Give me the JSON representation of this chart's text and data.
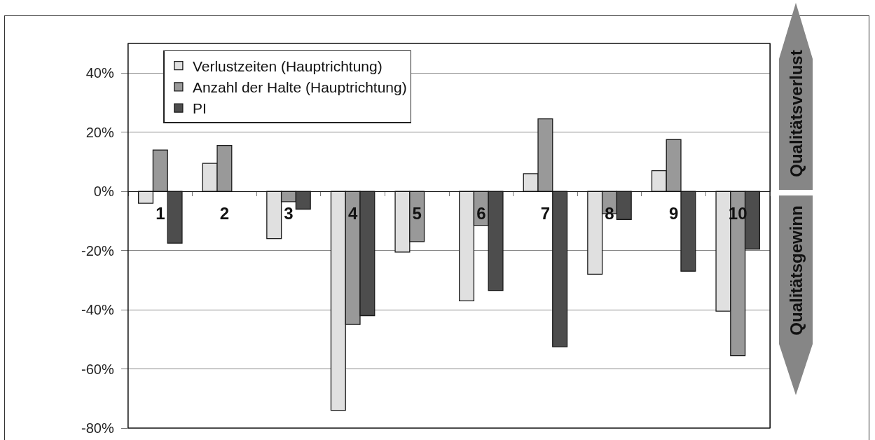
{
  "chart_data": {
    "type": "bar",
    "categories": [
      "1",
      "2",
      "3",
      "4",
      "5",
      "6",
      "7",
      "8",
      "9",
      "10"
    ],
    "series": [
      {
        "name": "Verlustzeiten (Hauptrichtung)",
        "color": "#e0e0e0",
        "values": [
          -4,
          9.5,
          -16,
          -74,
          -20.5,
          -37,
          6,
          -28,
          7,
          -40.5
        ]
      },
      {
        "name": "Anzahl der Halte (Hauptrichtung)",
        "color": "#999999",
        "values": [
          14,
          15.5,
          -3.5,
          -45,
          -17,
          -11.5,
          24.5,
          -7.5,
          17.5,
          -55.5
        ]
      },
      {
        "name": "PI",
        "color": "#4d4d4d",
        "values": [
          -17.5,
          null,
          -6,
          -42,
          null,
          -33.5,
          -52.5,
          -9.5,
          -27,
          -19.5
        ]
      }
    ],
    "ylim": [
      -80,
      50
    ],
    "yticks": [
      {
        "value": -80,
        "label": "-80%"
      },
      {
        "value": -60,
        "label": "-60%"
      },
      {
        "value": -40,
        "label": "-40%"
      },
      {
        "value": -20,
        "label": "-20%"
      },
      {
        "value": 0,
        "label": "0%"
      },
      {
        "value": 20,
        "label": "20%"
      },
      {
        "value": 40,
        "label": "40%"
      }
    ],
    "grid": "y",
    "legend": "top left",
    "annotations": [
      "Qualitätsverlust",
      "Qualitätsgewinn"
    ]
  }
}
